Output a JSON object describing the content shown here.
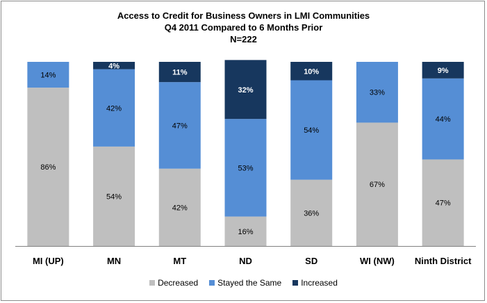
{
  "colors": {
    "decreased": "#bfbfbf",
    "stayed": "#558ed5",
    "increased": "#17375e",
    "axis": "#808080"
  },
  "chart_data": {
    "type": "bar",
    "stacked": true,
    "percent_stacked": true,
    "title": [
      "Access to Credit for Business Owners in LMI Communities",
      "Q4 2011 Compared to 6 Months Prior",
      "N=222"
    ],
    "categories": [
      "MI (UP)",
      "MN",
      "MT",
      "ND",
      "SD",
      "WI (NW)",
      "Ninth District"
    ],
    "ylim": [
      0,
      100
    ],
    "grid": false,
    "legend_position": "bottom",
    "series": [
      {
        "name": "Decreased",
        "values": [
          86,
          54,
          42,
          16,
          36,
          67,
          47
        ],
        "labels": [
          "86%",
          "54%",
          "42%",
          "16%",
          "36%",
          "67%",
          "47%"
        ]
      },
      {
        "name": "Stayed the Same",
        "values": [
          14,
          42,
          47,
          53,
          54,
          33,
          44
        ],
        "labels": [
          "14%",
          "42%",
          "47%",
          "53%",
          "54%",
          "33%",
          "44%"
        ]
      },
      {
        "name": "Increased",
        "values": [
          0,
          4,
          11,
          32,
          10,
          0,
          9
        ],
        "labels": [
          "",
          "4%",
          "11%",
          "32%",
          "10%",
          "",
          "9%"
        ]
      }
    ]
  }
}
